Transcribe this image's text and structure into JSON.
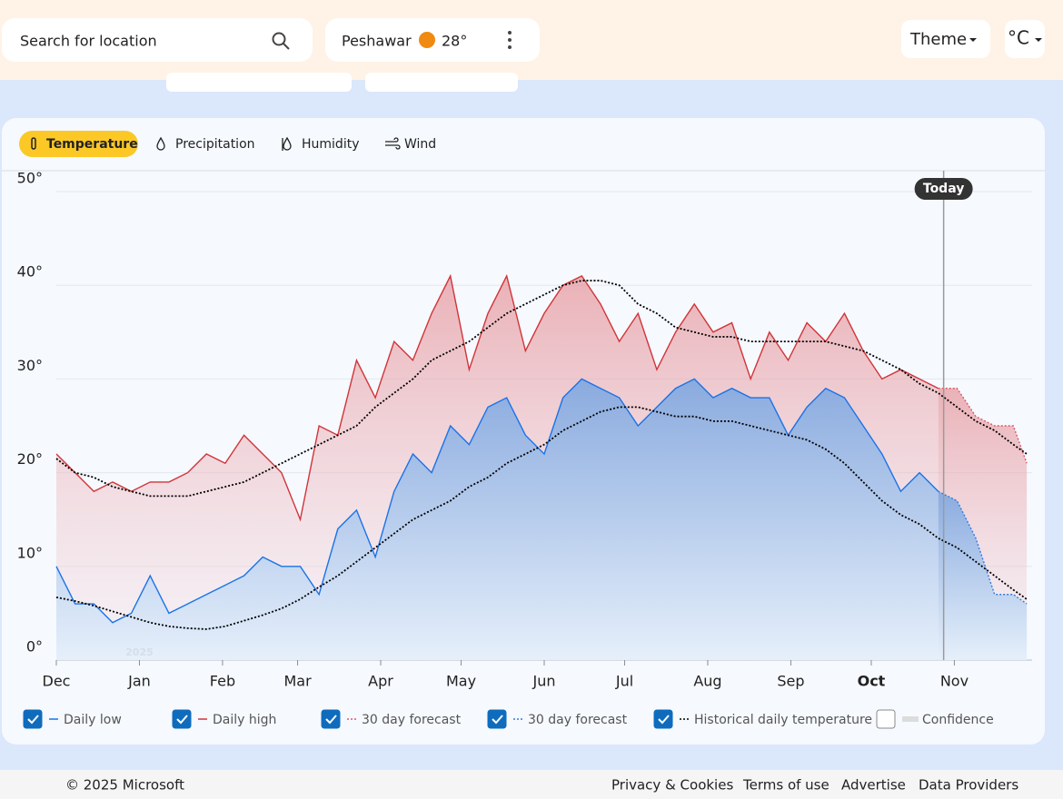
{
  "header": {
    "search_placeholder": "Search for location",
    "location": "Peshawar",
    "temperature": "28°",
    "theme": "Theme",
    "unit": "°C"
  },
  "tabs": [
    "Temperature",
    "Precipitation",
    "Humidity",
    "Wind"
  ],
  "chart_data": {
    "type": "line",
    "today_label": "Today",
    "today_x": 331,
    "year_label": "2025",
    "year_x": 31,
    "highlight_xtick": 10,
    "x": [
      0,
      7,
      14,
      21,
      28,
      35,
      42,
      49,
      56,
      63,
      70,
      77,
      84,
      91,
      98,
      105,
      112,
      119,
      126,
      133,
      140,
      147,
      154,
      161,
      168,
      175,
      182,
      189,
      196,
      203,
      210,
      217,
      224,
      231,
      238,
      245,
      252,
      259,
      266,
      273,
      280,
      287,
      294,
      301,
      308,
      315,
      322,
      329,
      336,
      343,
      350,
      357,
      362
    ],
    "xlim": [
      0,
      364
    ],
    "xticks": [
      {
        "value": 0,
        "label": "Dec"
      },
      {
        "value": 31,
        "label": "Jan"
      },
      {
        "value": 62,
        "label": "Feb"
      },
      {
        "value": 90,
        "label": "Mar"
      },
      {
        "value": 121,
        "label": "Apr"
      },
      {
        "value": 151,
        "label": "May"
      },
      {
        "value": 182,
        "label": "Jun"
      },
      {
        "value": 212,
        "label": "Jul"
      },
      {
        "value": 243,
        "label": "Aug"
      },
      {
        "value": 274,
        "label": "Sep"
      },
      {
        "value": 304,
        "label": "Oct"
      },
      {
        "value": 335,
        "label": "Nov"
      }
    ],
    "ylim": [
      0,
      50
    ],
    "yticks": [
      {
        "value": 0,
        "label": "0°"
      },
      {
        "value": 10,
        "label": "10°"
      },
      {
        "value": 20,
        "label": "20°"
      },
      {
        "value": 30,
        "label": "30°"
      },
      {
        "value": 40,
        "label": "40°"
      },
      {
        "value": 50,
        "label": "50°"
      }
    ],
    "grid": true,
    "series": [
      {
        "name": "Daily low",
        "color": "#1a73e8",
        "area": "blue",
        "dashed": false,
        "values": [
          10,
          6,
          6,
          4,
          5,
          9,
          5,
          6,
          7,
          8,
          9,
          11,
          10,
          10,
          7,
          14,
          16,
          11,
          18,
          22,
          20,
          25,
          23,
          27,
          28,
          24,
          22,
          28,
          30,
          29,
          28,
          25,
          27,
          29,
          30,
          28,
          29,
          28,
          28,
          24,
          27,
          29,
          28,
          25,
          22,
          18,
          20,
          18,
          null,
          null,
          null,
          null,
          null
        ]
      },
      {
        "name": "Daily high",
        "color": "#d13438",
        "area": "red",
        "dashed": false,
        "values": [
          22,
          20,
          18,
          19,
          18,
          19,
          19,
          20,
          22,
          21,
          24,
          22,
          20,
          15,
          25,
          24,
          32,
          28,
          34,
          32,
          37,
          41,
          31,
          37,
          41,
          33,
          37,
          40,
          41,
          38,
          34,
          37,
          31,
          35,
          38,
          35,
          36,
          30,
          35,
          32,
          36,
          34,
          37,
          33,
          30,
          31,
          30,
          29,
          null,
          null,
          null,
          null,
          null
        ]
      },
      {
        "name": "30 day forecast",
        "color": "#e0566a",
        "area": "red",
        "dashed": true,
        "values": [
          null,
          null,
          null,
          null,
          null,
          null,
          null,
          null,
          null,
          null,
          null,
          null,
          null,
          null,
          null,
          null,
          null,
          null,
          null,
          null,
          null,
          null,
          null,
          null,
          null,
          null,
          null,
          null,
          null,
          null,
          null,
          null,
          null,
          null,
          null,
          null,
          null,
          null,
          null,
          null,
          null,
          null,
          null,
          null,
          null,
          null,
          null,
          29,
          29,
          26,
          25,
          25,
          21
        ]
      },
      {
        "name": "30 day forecast",
        "color": "#2f7de1",
        "area": "blue",
        "dashed": true,
        "values": [
          null,
          null,
          null,
          null,
          null,
          null,
          null,
          null,
          null,
          null,
          null,
          null,
          null,
          null,
          null,
          null,
          null,
          null,
          null,
          null,
          null,
          null,
          null,
          null,
          null,
          null,
          null,
          null,
          null,
          null,
          null,
          null,
          null,
          null,
          null,
          null,
          null,
          null,
          null,
          null,
          null,
          null,
          null,
          null,
          null,
          null,
          null,
          18,
          17,
          13,
          7,
          7,
          6
        ]
      },
      {
        "name": "Historical daily temperature",
        "color": "#000000",
        "dashed": true,
        "values": [
          6.7,
          6.3,
          5.8,
          5.2,
          4.6,
          4,
          3.6,
          3.4,
          3.3,
          3.6,
          4.2,
          4.8,
          5.5,
          6.5,
          7.8,
          9,
          10.5,
          12,
          13.5,
          15,
          16,
          17,
          18.5,
          19.5,
          21,
          22,
          23,
          24.5,
          25.5,
          26.5,
          27,
          27,
          26.5,
          26,
          26,
          25.5,
          25.5,
          25,
          24.5,
          24,
          23.5,
          22.5,
          21,
          19,
          17,
          15.5,
          14.5,
          13,
          12,
          10.5,
          9,
          7.5,
          6.5
        ],
        "high": [
          21.5,
          20,
          19.5,
          18.5,
          18,
          17.5,
          17.5,
          17.5,
          18,
          18.5,
          19,
          20,
          21,
          22,
          23,
          24,
          25,
          27,
          28.5,
          30,
          32,
          33,
          34,
          35.5,
          37,
          38,
          39,
          40,
          40.5,
          40.5,
          40,
          38,
          37,
          35.5,
          35,
          34.5,
          34.5,
          34,
          34,
          34,
          34,
          34,
          33.5,
          33,
          32,
          31,
          29.5,
          28.5,
          27,
          25.5,
          24.5,
          23,
          22
        ]
      }
    ],
    "confidence": {
      "name": "Confidence",
      "checked": false
    }
  },
  "footer": {
    "copyright": "© 2025 Microsoft",
    "links": [
      "Privacy & Cookies",
      "Terms of use",
      "Advertise",
      "Data Providers"
    ]
  }
}
